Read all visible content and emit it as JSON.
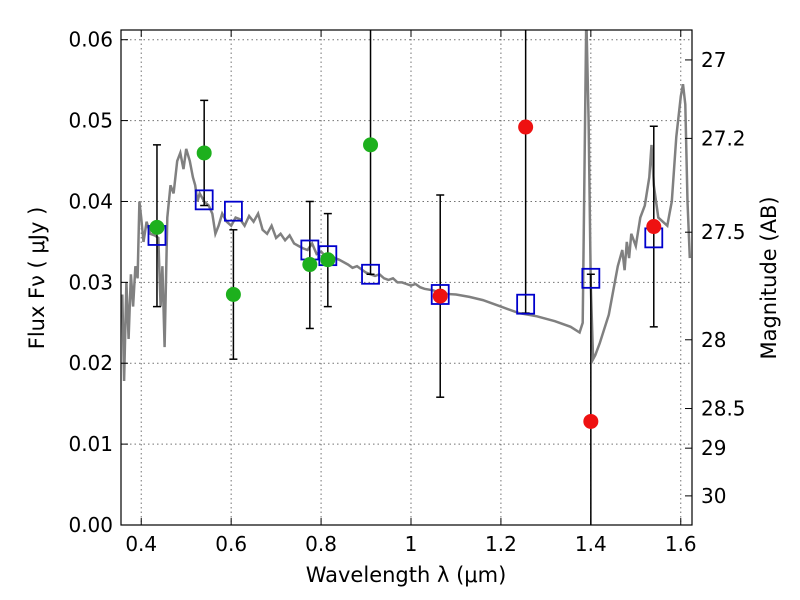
{
  "chart_data": {
    "type": "scatter",
    "title": "",
    "xlabel": "Wavelength  λ (μm)",
    "ylabel": "Flux  Fν  ( μJy )",
    "ylabel_right": "Magnitude (AB)",
    "xlim": [
      0.355,
      1.625
    ],
    "ylim": [
      0.0,
      0.0612
    ],
    "grid": true,
    "x_ticks": [
      0.4,
      0.6,
      0.8,
      1.0,
      1.2,
      1.4,
      1.6
    ],
    "x_tick_labels": [
      "0.4",
      "0.6",
      "0.8",
      "1",
      "1.2",
      "1.4",
      "1.6"
    ],
    "y_ticks": [
      0.0,
      0.01,
      0.02,
      0.03,
      0.04,
      0.05,
      0.06
    ],
    "y_tick_labels": [
      "0.00",
      "0.01",
      "0.02",
      "0.03",
      "0.04",
      "0.05",
      "0.06"
    ],
    "right_ticks": [
      {
        "label": "27",
        "flux": 0.0575
      },
      {
        "label": "27.2",
        "flux": 0.0478
      },
      {
        "label": "27.5",
        "flux": 0.0362
      },
      {
        "label": "28",
        "flux": 0.0229
      },
      {
        "label": "28.5",
        "flux": 0.0144
      },
      {
        "label": "29",
        "flux": 0.0095
      },
      {
        "label": "30",
        "flux": 0.0036
      }
    ],
    "colors": {
      "model": "#808080",
      "green": "#1db01d",
      "red": "#ee1111",
      "box": "#0000cc",
      "errorbar": "#000000"
    },
    "series": [
      {
        "name": "model_spectrum",
        "style": "line",
        "points": [
          [
            0.358,
            0.0285
          ],
          [
            0.362,
            0.0178
          ],
          [
            0.367,
            0.03
          ],
          [
            0.372,
            0.023
          ],
          [
            0.377,
            0.031
          ],
          [
            0.382,
            0.027
          ],
          [
            0.387,
            0.032
          ],
          [
            0.392,
            0.0305
          ],
          [
            0.396,
            0.04
          ],
          [
            0.4,
            0.038
          ],
          [
            0.405,
            0.035
          ],
          [
            0.412,
            0.0375
          ],
          [
            0.42,
            0.036
          ],
          [
            0.43,
            0.0358
          ],
          [
            0.438,
            0.0355
          ],
          [
            0.443,
            0.027
          ],
          [
            0.447,
            0.032
          ],
          [
            0.452,
            0.022
          ],
          [
            0.458,
            0.038
          ],
          [
            0.465,
            0.042
          ],
          [
            0.472,
            0.041
          ],
          [
            0.48,
            0.045
          ],
          [
            0.487,
            0.046
          ],
          [
            0.494,
            0.044
          ],
          [
            0.5,
            0.0465
          ],
          [
            0.508,
            0.045
          ],
          [
            0.515,
            0.043
          ],
          [
            0.52,
            0.042
          ],
          [
            0.525,
            0.04
          ],
          [
            0.53,
            0.041
          ],
          [
            0.54,
            0.04
          ],
          [
            0.55,
            0.0395
          ],
          [
            0.558,
            0.0385
          ],
          [
            0.565,
            0.036
          ],
          [
            0.572,
            0.037
          ],
          [
            0.58,
            0.0385
          ],
          [
            0.59,
            0.0375
          ],
          [
            0.6,
            0.037
          ],
          [
            0.61,
            0.038
          ],
          [
            0.62,
            0.0378
          ],
          [
            0.63,
            0.037
          ],
          [
            0.64,
            0.0382
          ],
          [
            0.65,
            0.0375
          ],
          [
            0.66,
            0.0385
          ],
          [
            0.67,
            0.0365
          ],
          [
            0.68,
            0.036
          ],
          [
            0.69,
            0.037
          ],
          [
            0.7,
            0.0355
          ],
          [
            0.71,
            0.036
          ],
          [
            0.72,
            0.0352
          ],
          [
            0.73,
            0.0358
          ],
          [
            0.74,
            0.0348
          ],
          [
            0.75,
            0.0345
          ],
          [
            0.76,
            0.0342
          ],
          [
            0.77,
            0.034
          ],
          [
            0.78,
            0.0348
          ],
          [
            0.79,
            0.0335
          ],
          [
            0.8,
            0.0338
          ],
          [
            0.81,
            0.0332
          ],
          [
            0.82,
            0.0335
          ],
          [
            0.83,
            0.033
          ],
          [
            0.84,
            0.0328
          ],
          [
            0.85,
            0.0325
          ],
          [
            0.86,
            0.0322
          ],
          [
            0.87,
            0.0318
          ],
          [
            0.88,
            0.032
          ],
          [
            0.89,
            0.0316
          ],
          [
            0.9,
            0.0312
          ],
          [
            0.91,
            0.031
          ],
          [
            0.92,
            0.0308
          ],
          [
            0.93,
            0.031
          ],
          [
            0.94,
            0.0305
          ],
          [
            0.95,
            0.0303
          ],
          [
            0.96,
            0.0305
          ],
          [
            0.97,
            0.03
          ],
          [
            0.98,
            0.03
          ],
          [
            0.99,
            0.0298
          ],
          [
            1.0,
            0.0296
          ],
          [
            1.01,
            0.0298
          ],
          [
            1.02,
            0.0294
          ],
          [
            1.03,
            0.0292
          ],
          [
            1.05,
            0.029
          ],
          [
            1.07,
            0.0286
          ],
          [
            1.1,
            0.0285
          ],
          [
            1.13,
            0.0282
          ],
          [
            1.16,
            0.0278
          ],
          [
            1.2,
            0.027
          ],
          [
            1.24,
            0.0262
          ],
          [
            1.28,
            0.0258
          ],
          [
            1.32,
            0.0252
          ],
          [
            1.355,
            0.0245
          ],
          [
            1.375,
            0.0238
          ],
          [
            1.382,
            0.025
          ],
          [
            1.386,
            0.044
          ],
          [
            1.39,
            0.063
          ],
          [
            1.395,
            0.05
          ],
          [
            1.4,
            0.0295
          ],
          [
            1.405,
            0.0205
          ],
          [
            1.41,
            0.021
          ],
          [
            1.42,
            0.0225
          ],
          [
            1.44,
            0.026
          ],
          [
            1.45,
            0.029
          ],
          [
            1.46,
            0.032
          ],
          [
            1.47,
            0.034
          ],
          [
            1.475,
            0.0315
          ],
          [
            1.48,
            0.035
          ],
          [
            1.485,
            0.033
          ],
          [
            1.49,
            0.036
          ],
          [
            1.5,
            0.0345
          ],
          [
            1.51,
            0.038
          ],
          [
            1.52,
            0.0395
          ],
          [
            1.53,
            0.043
          ],
          [
            1.535,
            0.047
          ],
          [
            1.54,
            0.042
          ],
          [
            1.55,
            0.038
          ],
          [
            1.56,
            0.0375
          ],
          [
            1.57,
            0.037
          ],
          [
            1.575,
            0.0385
          ],
          [
            1.58,
            0.04
          ],
          [
            1.59,
            0.048
          ],
          [
            1.6,
            0.053
          ],
          [
            1.605,
            0.0545
          ],
          [
            1.61,
            0.052
          ],
          [
            1.615,
            0.04
          ],
          [
            1.62,
            0.033
          ]
        ]
      },
      {
        "name": "model_bandpass",
        "style": "open-square",
        "points": [
          [
            0.435,
            0.0358
          ],
          [
            0.54,
            0.0402
          ],
          [
            0.605,
            0.0388
          ],
          [
            0.775,
            0.034
          ],
          [
            0.815,
            0.0333
          ],
          [
            0.91,
            0.031
          ],
          [
            1.065,
            0.0285
          ],
          [
            1.255,
            0.0273
          ],
          [
            1.4,
            0.0305
          ],
          [
            1.54,
            0.0355
          ]
        ]
      },
      {
        "name": "detections",
        "style": "filled-circle",
        "color_key": "green",
        "points": [
          {
            "x": 0.435,
            "y": 0.0368,
            "lo": 0.027,
            "hi": 0.047
          },
          {
            "x": 0.54,
            "y": 0.046,
            "lo": 0.0395,
            "hi": 0.0525
          },
          {
            "x": 0.605,
            "y": 0.0285,
            "lo": 0.0205,
            "hi": 0.0365
          },
          {
            "x": 0.775,
            "y": 0.0322,
            "lo": 0.0243,
            "hi": 0.04
          },
          {
            "x": 0.815,
            "y": 0.0328,
            "lo": 0.027,
            "hi": 0.0385
          },
          {
            "x": 0.91,
            "y": 0.047,
            "lo": 0.031,
            "hi": 0.064
          }
        ]
      },
      {
        "name": "nir_points",
        "style": "filled-circle",
        "color_key": "red",
        "points": [
          {
            "x": 1.065,
            "y": 0.0283,
            "lo": 0.0158,
            "hi": 0.0408
          },
          {
            "x": 1.255,
            "y": 0.0492,
            "lo": 0.0262,
            "hi": 0.064
          },
          {
            "x": 1.4,
            "y": 0.0128,
            "lo": -0.005,
            "hi": 0.031
          },
          {
            "x": 1.54,
            "y": 0.0369,
            "lo": 0.0245,
            "hi": 0.0493
          }
        ]
      }
    ]
  }
}
